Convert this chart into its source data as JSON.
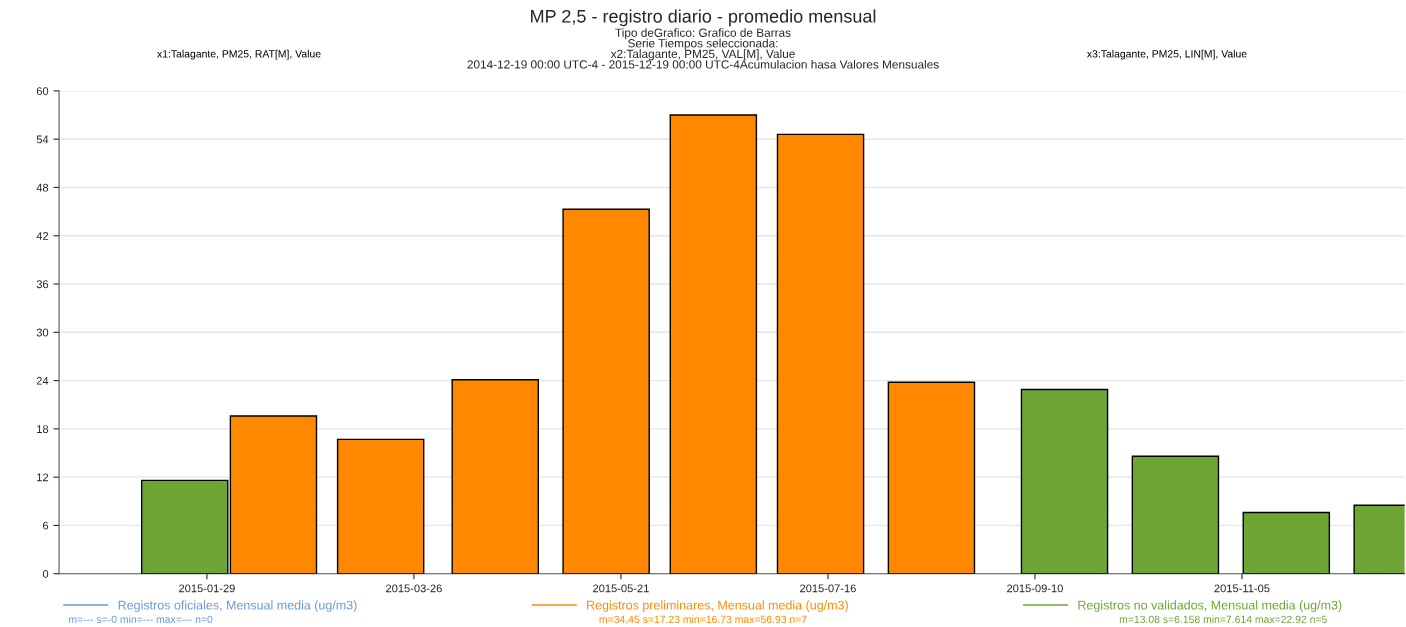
{
  "chart_data": {
    "type": "bar",
    "title": "MP 2,5 - registro diario - promedio mensual",
    "subtitle": "Tipo deGrafico: Grafico de Barras\nSerie Tiempos seleccionada:\nx2:Talagante, PM25, VAL[M], Value\n2014-12-19 00:00 UTC-4 - 2015-12-19 00:00 UTC-4Acumulacion hasa Valores Mensuales",
    "annotations": [
      "x1:Talagante, PM25, RAT[M], Value",
      "x3:Talagante, PM25, LIN[M], Value",
      "m=--- s=-0 min=--- max=--- n=0",
      "m=34.45 s=17.23 min=16.73 max=56.93 n=7",
      "m=13.08 s=6.158 min=7.614 max=22.92 n=5"
    ],
    "series": [
      {
        "name": "Registros oficiales, Mensual media (ug/m3)",
        "color": "#6699dd"
      },
      {
        "name": "Registros preliminares, Mensual media (ug/m3)",
        "color": "#ff8800",
        "x": [
          "2015-02-16",
          "2015-03-17",
          "2015-04-17",
          "2015-05-17",
          "2015-06-15",
          "2015-07-14",
          "2015-08-13"
        ],
        "values": [
          19.6,
          16.7,
          24.1,
          45.3,
          57.0,
          54.6,
          23.8
        ]
      },
      {
        "name": "Registros no validados, Mensual media (ug/m3)",
        "color": "#6ea535",
        "x": [
          "2015-01-23",
          "2015-09-18",
          "2015-10-18",
          "2015-11-17",
          "2015-12-17"
        ],
        "values": [
          11.6,
          22.9,
          14.6,
          7.6,
          8.5
        ]
      }
    ],
    "xlim": [
      "2014-12-20",
      "2015-12-19"
    ],
    "xticks": [
      {
        "value": "2015-01-29",
        "label": "2015-01-29"
      },
      {
        "value": "2015-03-26",
        "label": "2015-03-26"
      },
      {
        "value": "2015-05-21",
        "label": "2015-05-21"
      },
      {
        "value": "2015-07-16",
        "label": "2015-07-16"
      },
      {
        "value": "2015-09-10",
        "label": "2015-09-10"
      },
      {
        "value": "2015-11-05",
        "label": "2015-11-05"
      }
    ],
    "ylim": [
      0,
      60
    ],
    "yticks": [
      0,
      6,
      12,
      18,
      24,
      30,
      36,
      42,
      48,
      54,
      60
    ],
    "grid": "y",
    "legend": "bottom"
  }
}
